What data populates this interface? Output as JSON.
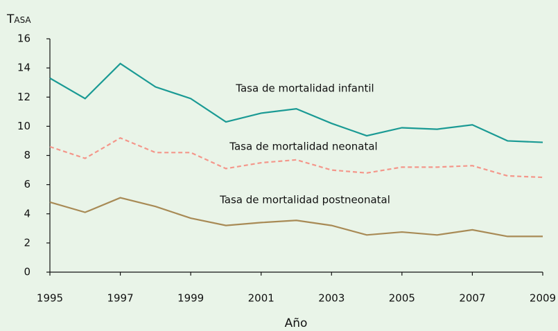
{
  "chart_data": {
    "type": "line",
    "y_label": "Tasa",
    "x_label": "Año",
    "x": [
      1995,
      1996,
      1997,
      1998,
      1999,
      2000,
      2001,
      2002,
      2003,
      2004,
      2005,
      2006,
      2007,
      2008,
      2009
    ],
    "series": [
      {
        "name": "Tasa de mortalidad infantil",
        "color": "#1a9a94",
        "dash": false,
        "values": [
          13.3,
          11.9,
          14.3,
          12.7,
          11.9,
          10.3,
          10.9,
          11.2,
          10.2,
          9.35,
          9.9,
          9.8,
          10.1,
          9.0,
          8.9
        ]
      },
      {
        "name": "Tasa de mortalidad neonatal",
        "color": "#f4968a",
        "dash": true,
        "values": [
          8.6,
          7.8,
          9.2,
          8.2,
          8.2,
          7.1,
          7.5,
          7.7,
          7.0,
          6.8,
          7.2,
          7.2,
          7.3,
          6.6,
          6.5
        ]
      },
      {
        "name": "Tasa de mortalidad postneonatal",
        "color": "#a88a55",
        "dash": false,
        "values": [
          4.8,
          4.1,
          5.1,
          4.5,
          3.7,
          3.2,
          3.4,
          3.55,
          3.2,
          2.55,
          2.75,
          2.55,
          2.9,
          2.45,
          2.45
        ]
      }
    ],
    "xlim": [
      1995,
      2009
    ],
    "xticks": [
      1995,
      1997,
      1999,
      2001,
      2003,
      2005,
      2007,
      2009
    ],
    "ylim": [
      0,
      16
    ],
    "yticks": [
      0,
      2,
      4,
      6,
      8,
      10,
      12,
      14,
      16
    ]
  }
}
